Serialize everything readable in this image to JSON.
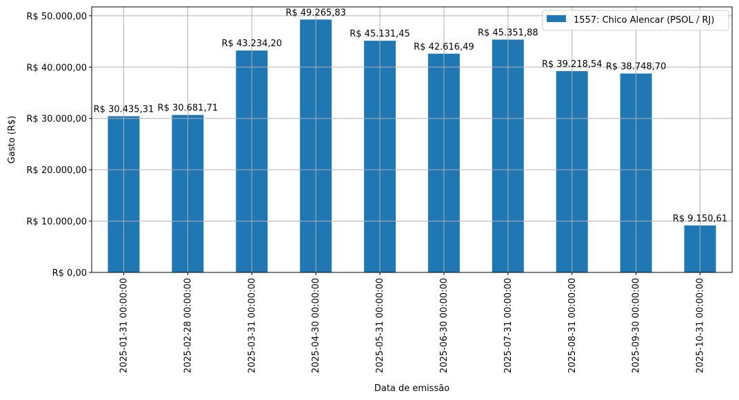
{
  "chart_data": {
    "type": "bar",
    "categories": [
      "2025-01-31 00:00:00",
      "2025-02-28 00:00:00",
      "2025-03-31 00:00:00",
      "2025-04-30 00:00:00",
      "2025-05-31 00:00:00",
      "2025-06-30 00:00:00",
      "2025-07-31 00:00:00",
      "2025-08-31 00:00:00",
      "2025-09-30 00:00:00",
      "2025-10-31 00:00:00"
    ],
    "series": [
      {
        "name": "1557: Chico Alencar (PSOL / RJ)",
        "color": "#1f77b4",
        "values": [
          30435.31,
          30681.71,
          43234.2,
          49265.83,
          45131.45,
          42616.49,
          45351.88,
          39218.54,
          38748.7,
          9150.61
        ],
        "labels": [
          "R$ 30.435,31",
          "R$ 30.681,71",
          "R$ 43.234,20",
          "R$ 49.265,83",
          "R$ 45.131,45",
          "R$ 42.616,49",
          "R$ 45.351,88",
          "R$ 39.218,54",
          "R$ 38.748,70",
          "R$ 9.150,61"
        ]
      }
    ],
    "title": "",
    "xlabel": "Data de emissão",
    "ylabel": "Gasto (R$)",
    "ylim": [
      0,
      51729.12
    ],
    "yticks": [
      0,
      10000,
      20000,
      30000,
      40000,
      50000
    ],
    "ytick_labels": [
      "R$ 0,00",
      "R$ 10.000,00",
      "R$ 20.000,00",
      "R$ 30.000,00",
      "R$ 40.000,00",
      "R$ 50.000,00"
    ],
    "grid": true,
    "legend_position": "top-right"
  }
}
